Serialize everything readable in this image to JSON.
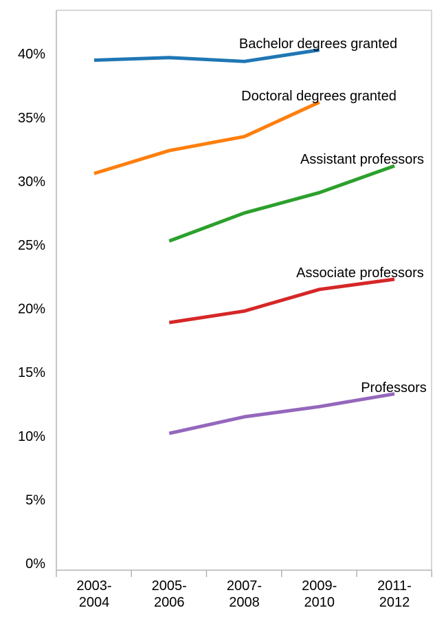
{
  "chart_data": {
    "type": "line",
    "title": "",
    "xlabel": "",
    "ylabel": "",
    "categories": [
      [
        "2003-",
        "2004"
      ],
      [
        "2005-",
        "2006"
      ],
      [
        "2007-",
        "2008"
      ],
      [
        "2009-",
        "2010"
      ],
      [
        "2011-",
        "2012"
      ]
    ],
    "ylim": [
      0,
      43
    ],
    "yticks": [
      {
        "value": 0,
        "label": "0%"
      },
      {
        "value": 5,
        "label": "5%"
      },
      {
        "value": 10,
        "label": "10%"
      },
      {
        "value": 15,
        "label": "15%"
      },
      {
        "value": 20,
        "label": "20%"
      },
      {
        "value": 25,
        "label": "25%"
      },
      {
        "value": 30,
        "label": "30%"
      },
      {
        "value": 35,
        "label": "35%"
      },
      {
        "value": 40,
        "label": "40%"
      }
    ],
    "grid": false,
    "legend": "inline labels near line ends",
    "series": [
      {
        "name": "Bachelor degrees granted",
        "color": "#1f77b4",
        "values": [
          39.5,
          39.7,
          39.4,
          40.3,
          null
        ]
      },
      {
        "name": "Doctoral degrees granted",
        "color": "#ff7f0e",
        "values": [
          30.6,
          32.4,
          33.5,
          36.2,
          null
        ]
      },
      {
        "name": "Assistant professors",
        "color": "#2ca02c",
        "values": [
          null,
          25.3,
          27.5,
          29.1,
          31.2
        ]
      },
      {
        "name": "Associate professors",
        "color": "#d62728",
        "values": [
          null,
          18.9,
          19.8,
          21.5,
          22.3
        ]
      },
      {
        "name": "Professors",
        "color": "#9467bd",
        "values": [
          null,
          10.2,
          11.5,
          12.3,
          13.3
        ]
      }
    ]
  }
}
